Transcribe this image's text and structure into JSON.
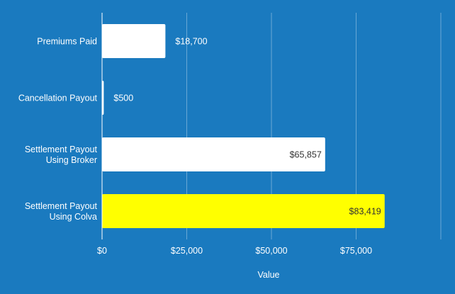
{
  "chart_data": {
    "type": "bar",
    "orientation": "horizontal",
    "categories": [
      [
        "Premiums Paid"
      ],
      [
        "Cancellation Payout"
      ],
      [
        "Settlement Payout",
        "Using Broker"
      ],
      [
        "Settlement Payout",
        "Using Colva"
      ]
    ],
    "values": [
      18700,
      500,
      65857,
      83419
    ],
    "data_labels": [
      "$18,700",
      "$500",
      "$65,857",
      "$83,419"
    ],
    "bar_colors": [
      "#ffffff",
      "#ffffff",
      "#ffffff",
      "#ffff00"
    ],
    "xlim": [
      0,
      100000
    ],
    "x_ticks": [
      0,
      25000,
      50000,
      75000,
      100000
    ],
    "x_tick_labels": [
      "$0",
      "$25,000",
      "$50,000",
      "$75,000",
      ""
    ],
    "xlabel": "Value",
    "ylabel": "",
    "title": "",
    "grid": true,
    "legend": "none",
    "colors": {
      "background": "#1a7abf",
      "text": "#ffffff",
      "label_inside": "#333333"
    }
  }
}
